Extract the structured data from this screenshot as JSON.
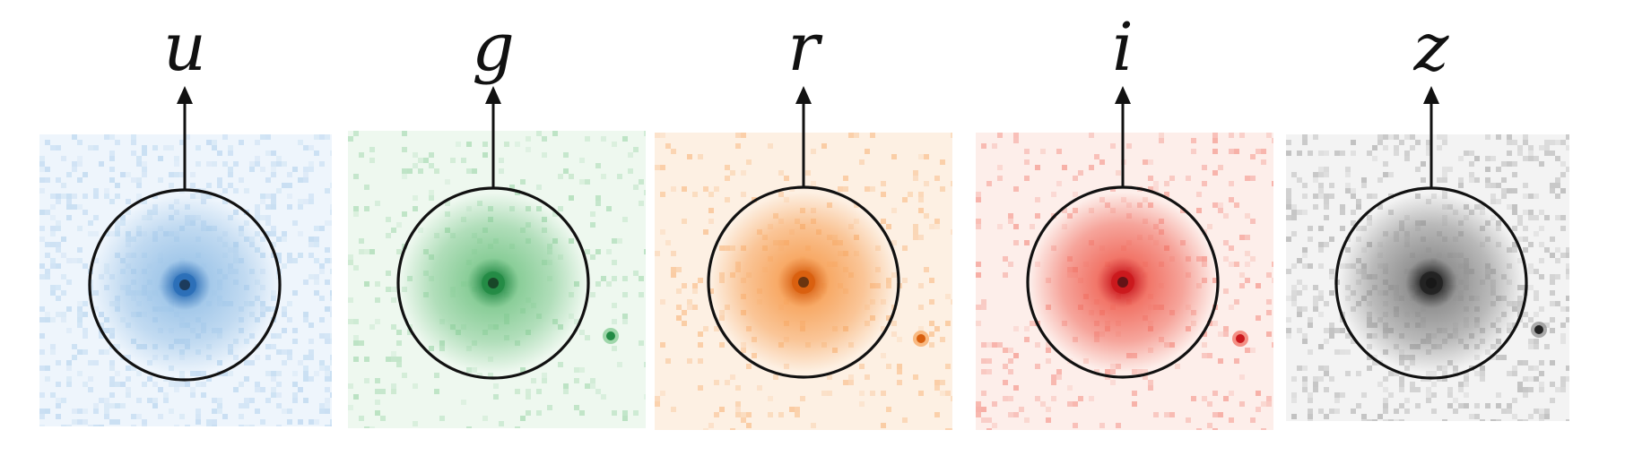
{
  "bands": [
    {
      "label": "u",
      "color": "#2b6fb8",
      "mid": "#9cc4e8",
      "bg": "#eef5fc",
      "noise": 0.55,
      "companion": false
    },
    {
      "label": "g",
      "color": "#238b45",
      "mid": "#7fc98f",
      "bg": "#eef8ef",
      "noise": 0.18,
      "companion": true
    },
    {
      "label": "r",
      "color": "#d95f0e",
      "mid": "#f7a259",
      "bg": "#fdf0e3",
      "noise": 0.2,
      "companion": true
    },
    {
      "label": "i",
      "color": "#cb181d",
      "mid": "#f0685a",
      "bg": "#fdeeea",
      "noise": 0.22,
      "companion": true
    },
    {
      "label": "z",
      "color": "#222222",
      "mid": "#8a8a8a",
      "bg": "#f3f3f3",
      "noise": 0.5,
      "companion": true
    }
  ]
}
